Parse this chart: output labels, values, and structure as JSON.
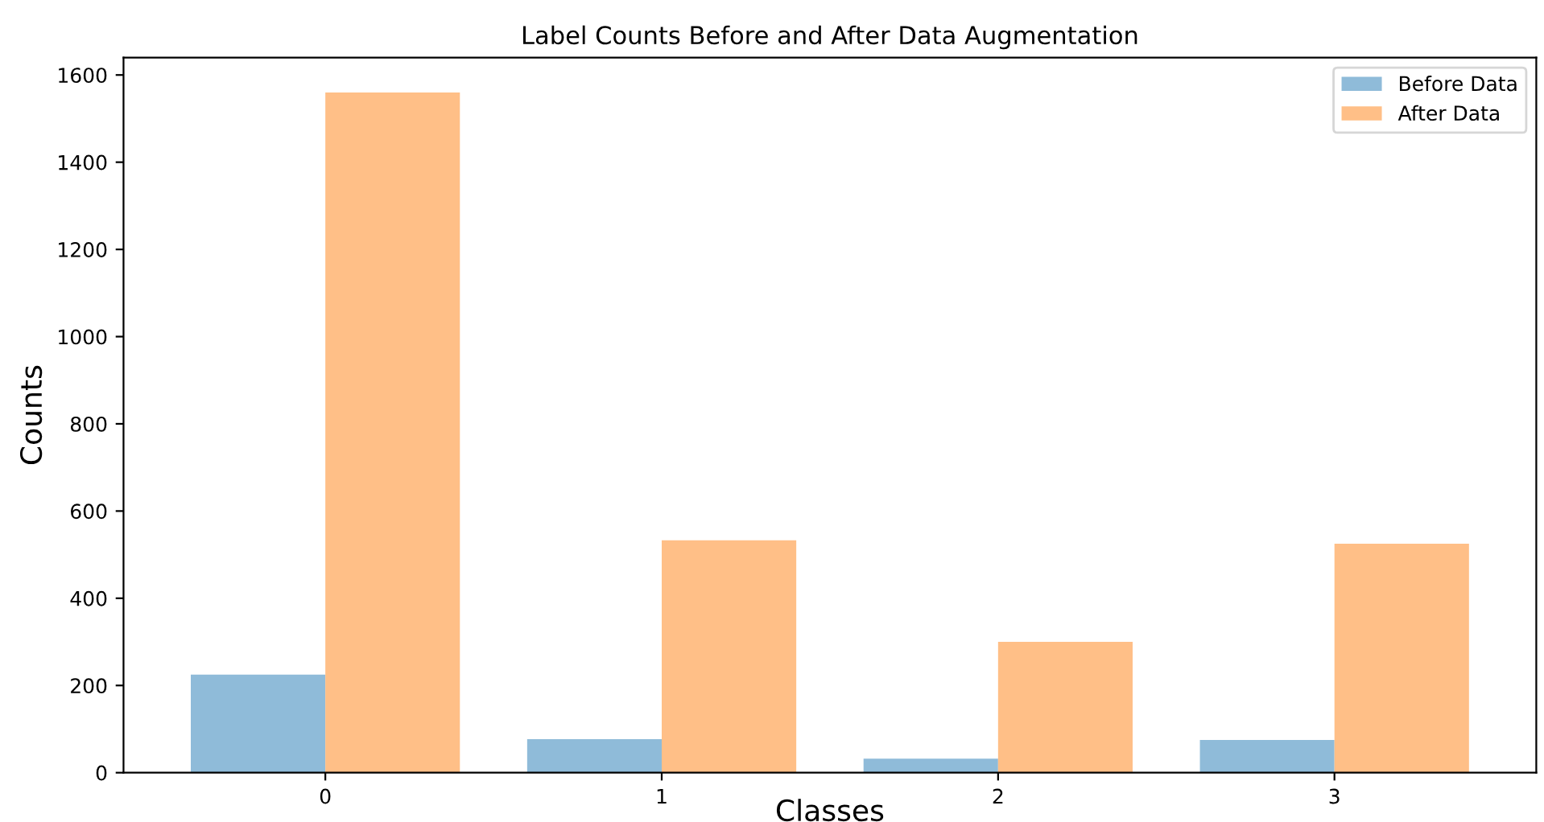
{
  "chart_data": {
    "type": "bar",
    "title": "Label Counts Before and After Data Augmentation",
    "xlabel": "Classes",
    "ylabel": "Counts",
    "categories": [
      "0",
      "1",
      "2",
      "3"
    ],
    "series": [
      {
        "name": "Before Data",
        "color": "#8fbbd9",
        "values": [
          225,
          77,
          32,
          75
        ]
      },
      {
        "name": "After Data",
        "color": "#ffbf87",
        "values": [
          1560,
          533,
          300,
          525
        ]
      }
    ],
    "ylim": [
      0,
      1640
    ],
    "yticks": [
      0,
      200,
      400,
      600,
      800,
      1000,
      1200,
      1400,
      1600
    ],
    "grid": false,
    "legend": "top right"
  }
}
